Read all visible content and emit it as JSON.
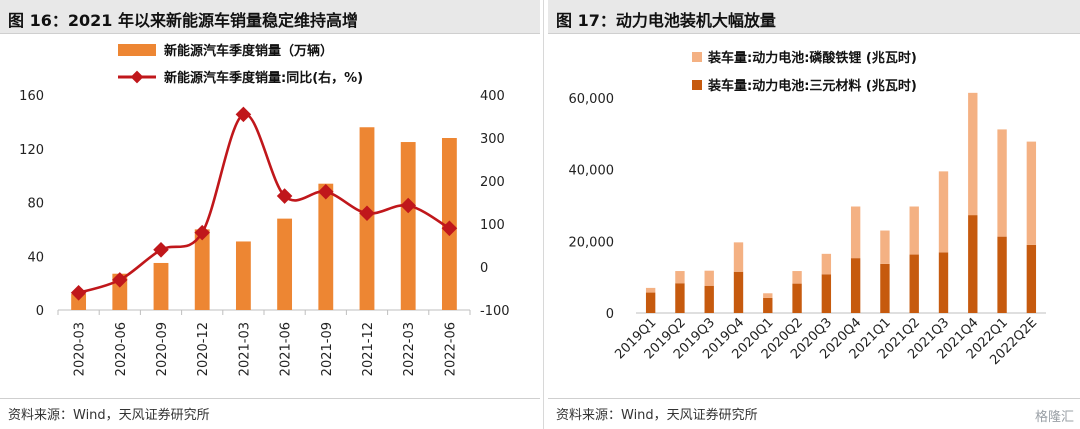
{
  "figures": {
    "left_title": "图 16：2021 年以来新能源车销量稳定维持高增",
    "right_title": "图 17：动力电池装机大幅放量",
    "left_source": "资料来源：Wind，天风证券研究所",
    "right_source": "资料来源：Wind，天风证券研究所",
    "watermark": "格隆汇"
  },
  "chart_data": [
    {
      "type": "bar",
      "title": "",
      "categories": [
        "2020-03",
        "2020-06",
        "2020-09",
        "2020-12",
        "2021-03",
        "2021-06",
        "2021-09",
        "2021-12",
        "2022-03",
        "2022-06"
      ],
      "series": [
        {
          "name": "新能源汽车季度销量（万辆）",
          "type": "bar",
          "axis": "left",
          "color": "#ED8633",
          "values": [
            12,
            27,
            35,
            60,
            51,
            68,
            94,
            136,
            125,
            128
          ]
        },
        {
          "name": "新能源汽车季度销量:同比(右，%)",
          "type": "line",
          "axis": "right",
          "color": "#C0171B",
          "values": [
            -60,
            -30,
            40,
            80,
            355,
            165,
            175,
            125,
            143,
            90
          ]
        }
      ],
      "ylim_left": [
        0,
        160
      ],
      "yticks_left": [
        "0",
        "40",
        "80",
        "120",
        "160"
      ],
      "ylim_right": [
        -100,
        400
      ],
      "yticks_right": [
        "-100",
        "0",
        "100",
        "200",
        "300",
        "400"
      ],
      "xlabel": "",
      "ylabel": "",
      "legend": "top-center",
      "grid": false
    },
    {
      "type": "bar",
      "title": "",
      "stacked": true,
      "categories": [
        "2019Q1",
        "2019Q2",
        "2019Q3",
        "2019Q4",
        "2020Q1",
        "2020Q2",
        "2020Q3",
        "2020Q4",
        "2021Q1",
        "2021Q2",
        "2021Q3",
        "2021Q4",
        "2022Q1",
        "2022Q2E"
      ],
      "series": [
        {
          "name": "装车量:动力电池:三元材料 (兆瓦时)",
          "color": "#C65A0E",
          "values": [
            5700,
            8300,
            7600,
            11500,
            4200,
            8200,
            10800,
            15300,
            13700,
            16300,
            16900,
            27300,
            21300,
            19000
          ]
        },
        {
          "name": "装车量:动力电池:磷酸铁锂 (兆瓦时)",
          "color": "#F4B183",
          "values": [
            1300,
            3400,
            4200,
            8200,
            1300,
            3500,
            5700,
            14400,
            9300,
            13400,
            22600,
            34100,
            29900,
            28800
          ]
        }
      ],
      "ylim": [
        0,
        70000
      ],
      "yticks": [
        "0",
        "20,000",
        "40,000",
        "60,000"
      ],
      "xlabel": "",
      "ylabel": "",
      "legend": "top-left",
      "grid": false
    }
  ]
}
